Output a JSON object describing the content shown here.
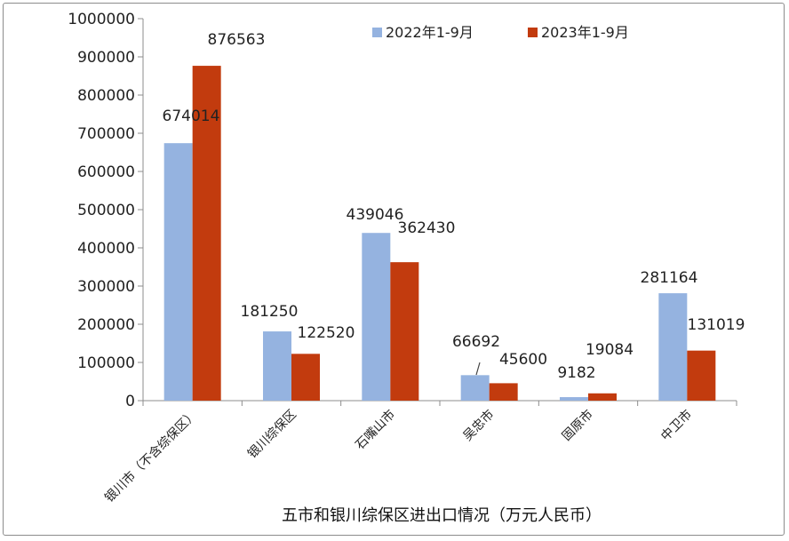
{
  "chart_data": {
    "type": "bar",
    "title": "五市和银川综保区进出口情况（万元人民币）",
    "categories": [
      "银川市（不含综保区）",
      "银川综保区",
      "石嘴山市",
      "吴忠市",
      "固原市",
      "中卫市"
    ],
    "series": [
      {
        "name": "2022年1-9月",
        "color": "#95b3e0",
        "values": [
          674014,
          181250,
          439046,
          66692,
          9182,
          281164
        ]
      },
      {
        "name": "2023年1-9月",
        "color": "#c23b0e",
        "values": [
          876563,
          122520,
          362430,
          45600,
          19084,
          131019
        ]
      }
    ],
    "ylim": [
      0,
      1000000
    ],
    "yticks": [
      "0",
      "100000",
      "200000",
      "300000",
      "400000",
      "500000",
      "600000",
      "700000",
      "800000",
      "900000",
      "1000000"
    ],
    "grid": false,
    "legend_position": "top-right"
  }
}
